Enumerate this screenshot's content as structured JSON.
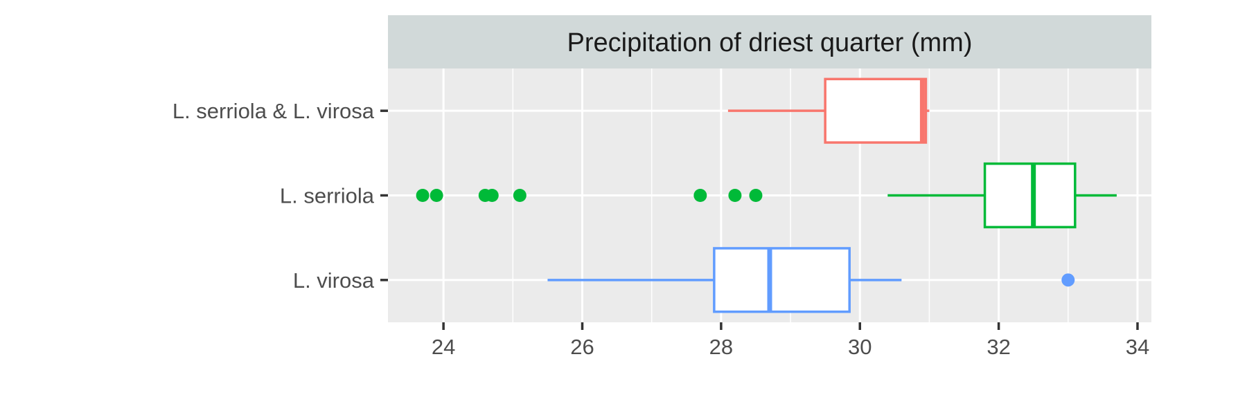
{
  "chart_data": {
    "type": "boxplot",
    "orientation": "horizontal",
    "title": "Precipitation of driest quarter (mm)",
    "xlabel": "",
    "ylabel": "",
    "xlim": [
      23.2,
      34.2
    ],
    "x_ticks": [
      24,
      26,
      28,
      30,
      32,
      34
    ],
    "x_tick_labels": [
      "24",
      "26",
      "28",
      "30",
      "32",
      "34"
    ],
    "grid": true,
    "legend": "none",
    "categories": [
      "L. serriola & L. virosa",
      "L. serriola",
      "L. virosa"
    ],
    "series": [
      {
        "category": "L. serriola & L. virosa",
        "color": "#f8766d",
        "whisker_low": 28.1,
        "q1": 29.5,
        "median": 30.9,
        "q3": 30.95,
        "whisker_high": 31.0,
        "outliers": []
      },
      {
        "category": "L. serriola",
        "color": "#00ba38",
        "whisker_low": 30.4,
        "q1": 31.8,
        "median": 32.5,
        "q3": 33.1,
        "whisker_high": 33.7,
        "outliers": [
          23.7,
          23.9,
          24.6,
          24.7,
          25.1,
          27.7,
          28.2,
          28.5
        ]
      },
      {
        "category": "L. virosa",
        "color": "#619cff",
        "whisker_low": 25.5,
        "q1": 27.9,
        "median": 28.7,
        "q3": 29.85,
        "whisker_high": 30.6,
        "outliers": [
          33.0
        ]
      }
    ],
    "colors": {
      "panel_background": "#ebebeb",
      "grid_line": "#ffffff",
      "strip_background": "#d1d9d9",
      "box_fill": "#ffffff",
      "axis_tick": "#333333"
    }
  }
}
